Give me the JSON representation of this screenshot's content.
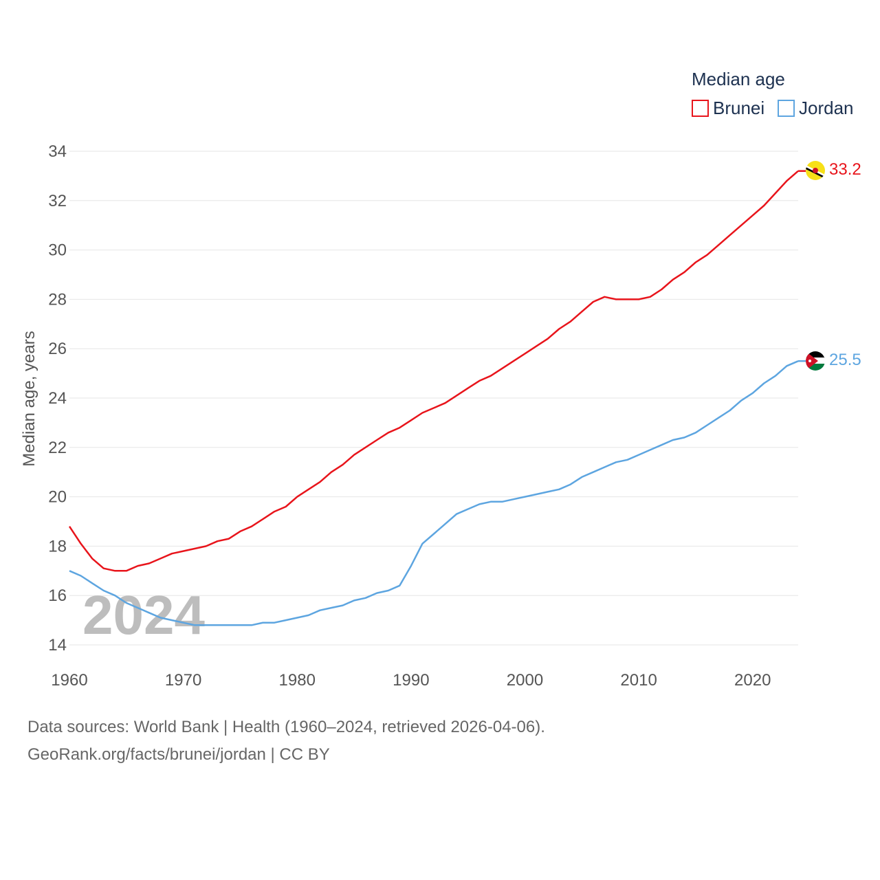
{
  "colors": {
    "brunei": "#e8141b",
    "jordan": "#5da5e0",
    "grid": "#e6e6e6",
    "text": "#555555"
  },
  "chart_data": {
    "type": "line",
    "title": "",
    "xlabel": "",
    "ylabel": "Median age, years",
    "xlim": [
      1960,
      2024
    ],
    "ylim": [
      14,
      34
    ],
    "yticks": [
      14,
      16,
      18,
      20,
      22,
      24,
      26,
      28,
      30,
      32,
      34
    ],
    "xticks": [
      1960,
      1970,
      1980,
      1990,
      2000,
      2010,
      2020
    ],
    "year_watermark": "2024",
    "legend": {
      "title": "Median age",
      "position": "top-right"
    },
    "x": [
      1960,
      1961,
      1962,
      1963,
      1964,
      1965,
      1966,
      1967,
      1968,
      1969,
      1970,
      1971,
      1972,
      1973,
      1974,
      1975,
      1976,
      1977,
      1978,
      1979,
      1980,
      1981,
      1982,
      1983,
      1984,
      1985,
      1986,
      1987,
      1988,
      1989,
      1990,
      1991,
      1992,
      1993,
      1994,
      1995,
      1996,
      1997,
      1998,
      1999,
      2000,
      2001,
      2002,
      2003,
      2004,
      2005,
      2006,
      2007,
      2008,
      2009,
      2010,
      2011,
      2012,
      2013,
      2014,
      2015,
      2016,
      2017,
      2018,
      2019,
      2020,
      2021,
      2022,
      2023,
      2024
    ],
    "series": [
      {
        "name": "Brunei",
        "color": "#e8141b",
        "end_label": "33.2",
        "values": [
          18.8,
          18.1,
          17.5,
          17.1,
          17.0,
          17.0,
          17.2,
          17.3,
          17.5,
          17.7,
          17.8,
          17.9,
          18.0,
          18.2,
          18.3,
          18.6,
          18.8,
          19.1,
          19.4,
          19.6,
          20.0,
          20.3,
          20.6,
          21.0,
          21.3,
          21.7,
          22.0,
          22.3,
          22.6,
          22.8,
          23.1,
          23.4,
          23.6,
          23.8,
          24.1,
          24.4,
          24.7,
          24.9,
          25.2,
          25.5,
          25.8,
          26.1,
          26.4,
          26.8,
          27.1,
          27.5,
          27.9,
          28.1,
          28.0,
          28.0,
          28.0,
          28.1,
          28.4,
          28.8,
          29.1,
          29.5,
          29.8,
          30.2,
          30.6,
          31.0,
          31.4,
          31.8,
          32.3,
          32.8,
          33.2
        ]
      },
      {
        "name": "Jordan",
        "color": "#5da5e0",
        "end_label": "25.5",
        "values": [
          17.0,
          16.8,
          16.5,
          16.2,
          16.0,
          15.7,
          15.5,
          15.3,
          15.1,
          15.0,
          14.9,
          14.8,
          14.8,
          14.8,
          14.8,
          14.8,
          14.8,
          14.9,
          14.9,
          15.0,
          15.1,
          15.2,
          15.4,
          15.5,
          15.6,
          15.8,
          15.9,
          16.1,
          16.2,
          16.4,
          17.2,
          18.1,
          18.5,
          18.9,
          19.3,
          19.5,
          19.7,
          19.8,
          19.8,
          19.9,
          20.0,
          20.1,
          20.2,
          20.3,
          20.5,
          20.8,
          21.0,
          21.2,
          21.4,
          21.5,
          21.7,
          21.9,
          22.1,
          22.3,
          22.4,
          22.6,
          22.9,
          23.2,
          23.5,
          23.9,
          24.2,
          24.6,
          24.9,
          25.3,
          25.5
        ]
      }
    ]
  },
  "footer": {
    "line1": "Data sources: World Bank | Health (1960–2024, retrieved 2026-04-06).",
    "line2": "GeoRank.org/facts/brunei/jordan | CC BY"
  }
}
